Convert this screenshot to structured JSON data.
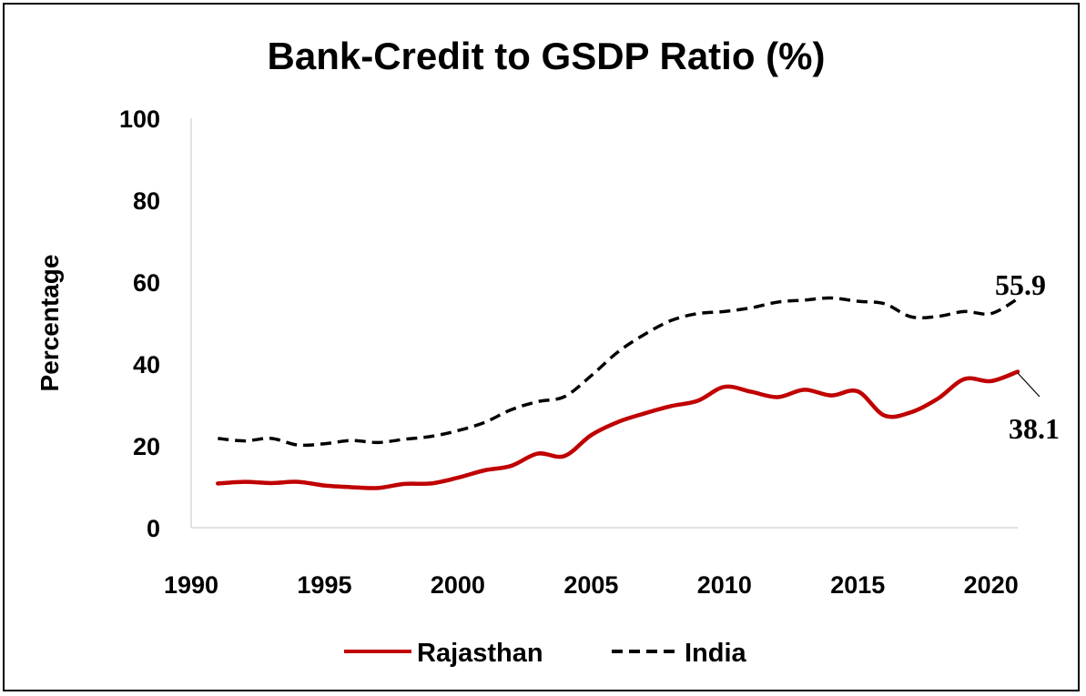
{
  "chart_data": {
    "type": "line",
    "title": "Bank-Credit to GSDP Ratio (%)",
    "xlabel": "",
    "ylabel": "Percentage",
    "xlim": [
      1990,
      2021
    ],
    "ylim": [
      0,
      100
    ],
    "x_ticks": [
      "1990",
      "1995",
      "2000",
      "2005",
      "2010",
      "2015",
      "2020"
    ],
    "y_ticks": [
      "0",
      "20",
      "40",
      "60",
      "80",
      "100"
    ],
    "grid": false,
    "legend_position": "bottom",
    "x": [
      1991,
      1992,
      1993,
      1994,
      1995,
      1996,
      1997,
      1998,
      1999,
      2000,
      2001,
      2002,
      2003,
      2004,
      2005,
      2006,
      2007,
      2008,
      2009,
      2010,
      2011,
      2012,
      2013,
      2014,
      2015,
      2016,
      2017,
      2018,
      2019,
      2020,
      2021
    ],
    "series": [
      {
        "name": "Rajasthan",
        "color": "#c00000",
        "style": "solid",
        "values": [
          10.8,
          11.2,
          10.9,
          11.2,
          10.3,
          9.9,
          9.7,
          10.7,
          10.8,
          12.2,
          14.0,
          15.1,
          18.1,
          17.5,
          22.6,
          25.8,
          27.9,
          29.7,
          31.0,
          34.4,
          33.2,
          31.9,
          33.7,
          32.3,
          33.3,
          27.4,
          28.2,
          31.5,
          36.3,
          35.8,
          38.1
        ]
      },
      {
        "name": "India",
        "color": "#000000",
        "style": "dashed",
        "values": [
          21.8,
          21.2,
          21.8,
          20.2,
          20.5,
          21.3,
          20.8,
          21.6,
          22.3,
          23.7,
          25.7,
          28.8,
          30.8,
          32.0,
          37.1,
          42.9,
          47.2,
          50.6,
          52.3,
          52.8,
          53.7,
          55.1,
          55.6,
          56.1,
          55.3,
          54.7,
          51.5,
          51.6,
          52.8,
          52.3,
          55.9
        ]
      }
    ],
    "annotations": [
      {
        "text": "55.9",
        "series": "India",
        "x": 2021,
        "y": 55.9
      },
      {
        "text": "38.1",
        "series": "Rajasthan",
        "x": 2021,
        "y": 38.1
      }
    ]
  }
}
